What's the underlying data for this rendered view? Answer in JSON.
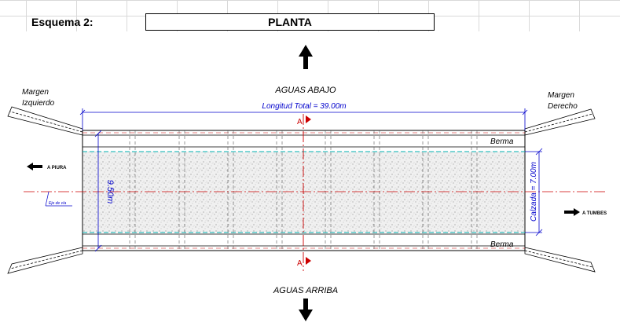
{
  "header": {
    "scheme_label": "Esquema 2:",
    "view_title": "PLANTA"
  },
  "drawing": {
    "downstream_label": "AGUAS ABAJO",
    "upstream_label": "AGUAS ARRIBA",
    "left_bank_line1": "Margen",
    "left_bank_line2": "Izquierdo",
    "right_bank_line1": "Margen",
    "right_bank_line2": "Derecho",
    "total_length": "Longitud Total = 39.00m",
    "section_mark": "A",
    "berm_label": "Berma",
    "width_dimension": "9.50m",
    "roadway_dimension": "Calzada = 7.00m",
    "to_left": "A PIURA",
    "to_right": "A TUMBES",
    "axis_label": "Eje de vía"
  },
  "colors": {
    "outline": "#000000",
    "dimension": "#0000cc",
    "axis": "#cc0000",
    "roadway_edge": "#00b0b0"
  }
}
